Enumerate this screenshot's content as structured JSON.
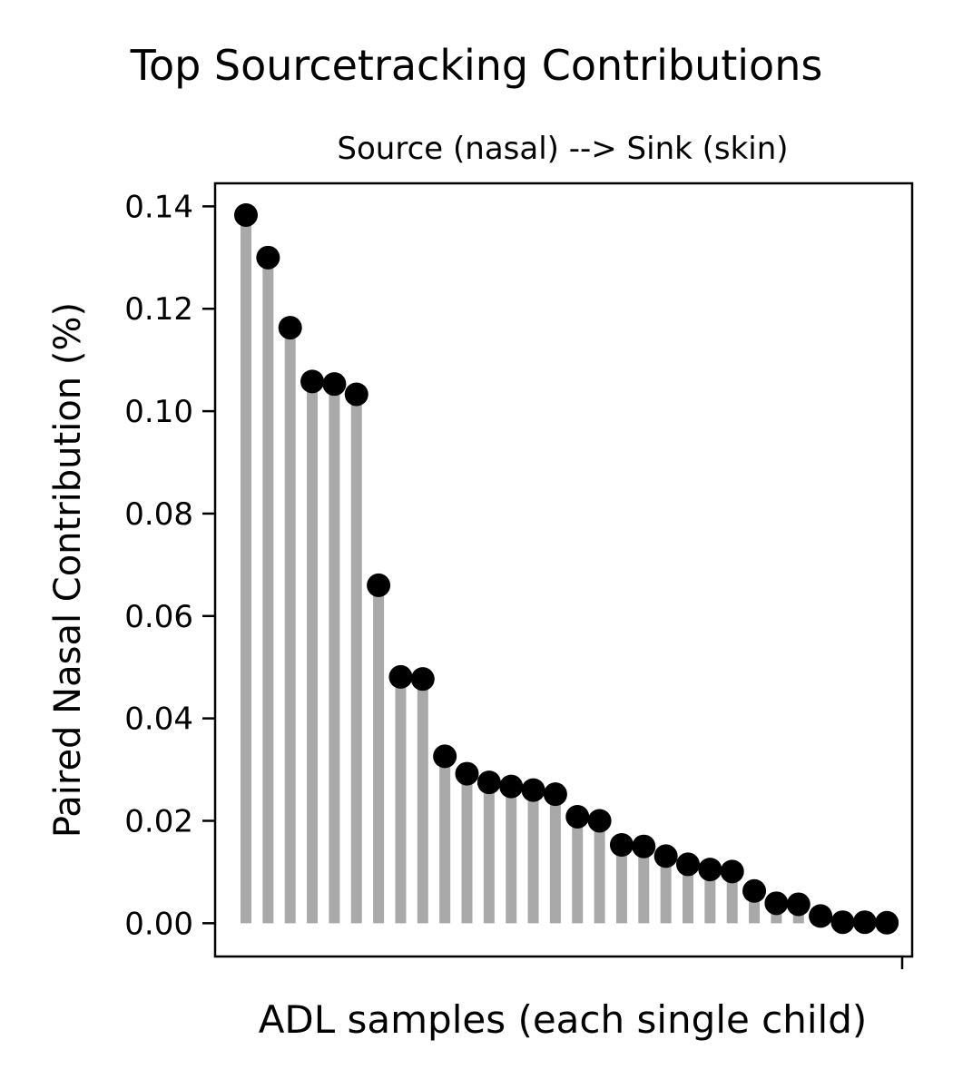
{
  "chart_data": {
    "type": "lollipop",
    "title": "Top Sourcetracking Contributions",
    "subtitle": "Source (nasal) --> Sink (skin)",
    "xlabel": "ADL samples (each single child)",
    "ylabel": "Paired Nasal Contribution (%)",
    "ylim": [
      -0.0065,
      0.1445
    ],
    "yticks": [
      0.0,
      0.02,
      0.04,
      0.06,
      0.08,
      0.1,
      0.12,
      0.14
    ],
    "ytick_labels": [
      "0.00",
      "0.02",
      "0.04",
      "0.06",
      "0.08",
      "0.10",
      "0.12",
      "0.14"
    ],
    "x_tick_labels_shown": false,
    "grid": false,
    "legend": "none",
    "stem_color": "#a9a9a9",
    "marker_color": "#000000",
    "values": [
      0.1383,
      0.13,
      0.1163,
      0.1058,
      0.1053,
      0.1033,
      0.066,
      0.0481,
      0.0477,
      0.0326,
      0.0292,
      0.0275,
      0.0267,
      0.026,
      0.0252,
      0.0208,
      0.02,
      0.0153,
      0.015,
      0.0131,
      0.0115,
      0.0105,
      0.0101,
      0.0063,
      0.0039,
      0.0037,
      0.0014,
      0.0002,
      0.0002,
      0.0001
    ]
  }
}
